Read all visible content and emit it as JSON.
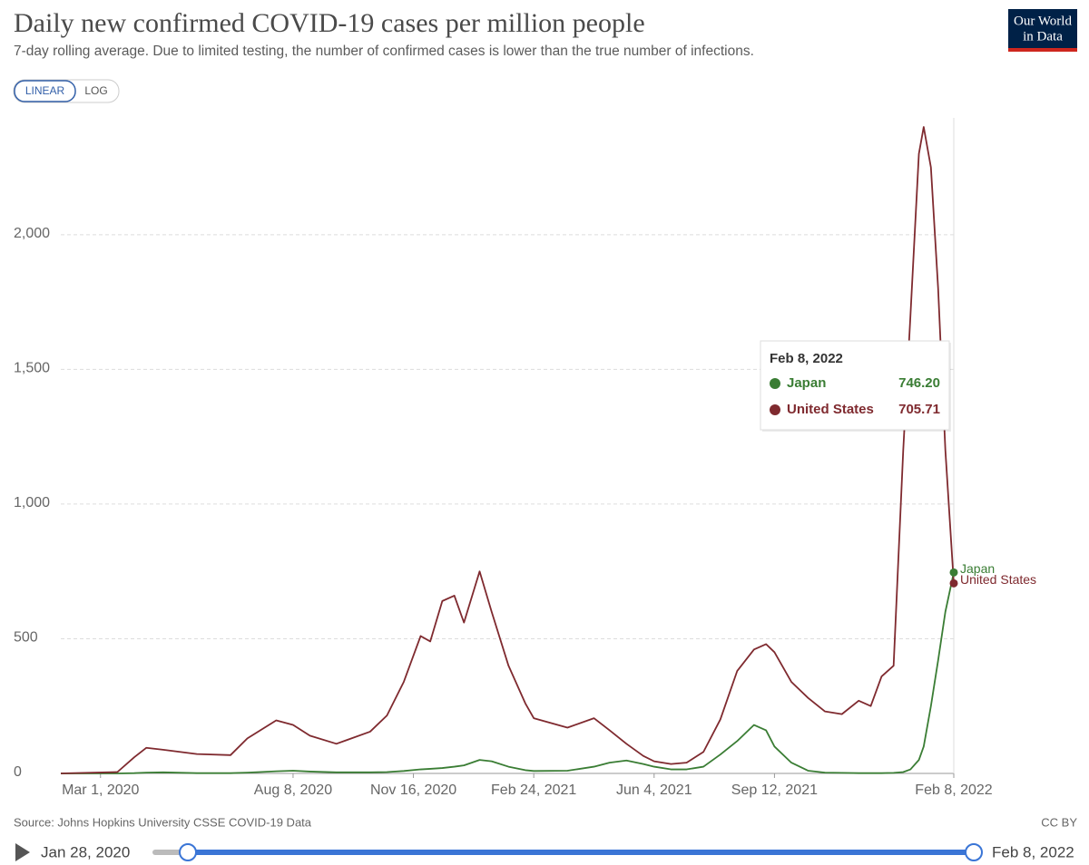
{
  "chart_data": {
    "type": "line",
    "title": "Daily new confirmed COVID-19 cases per million people",
    "subtitle": "7-day rolling average. Due to limited testing, the number of confirmed cases is lower than the true number of infections.",
    "scale_buttons": [
      "LINEAR",
      "LOG"
    ],
    "active_scale": "LINEAR",
    "logo": [
      "Our World",
      "in Data"
    ],
    "source": "Source: Johns Hopkins University CSSE COVID-19 Data",
    "license": "CC BY",
    "timeline": {
      "start": "Jan 28, 2020",
      "end": "Feb 8, 2022"
    },
    "x": [
      "2020-01-28",
      "2020-03-15",
      "2020-03-29",
      "2020-04-08",
      "2020-04-22",
      "2020-05-20",
      "2020-06-17",
      "2020-07-01",
      "2020-07-25",
      "2020-08-08",
      "2020-08-22",
      "2020-09-13",
      "2020-10-11",
      "2020-10-25",
      "2020-11-08",
      "2020-11-22",
      "2020-11-30",
      "2020-12-10",
      "2020-12-20",
      "2020-12-28",
      "2021-01-10",
      "2021-01-20",
      "2021-02-03",
      "2021-02-17",
      "2021-02-24",
      "2021-03-24",
      "2021-04-15",
      "2021-04-28",
      "2021-05-12",
      "2021-05-26",
      "2021-06-04",
      "2021-06-18",
      "2021-07-01",
      "2021-07-15",
      "2021-07-29",
      "2021-08-12",
      "2021-08-26",
      "2021-09-05",
      "2021-09-12",
      "2021-09-26",
      "2021-10-10",
      "2021-10-24",
      "2021-11-07",
      "2021-11-21",
      "2021-12-01",
      "2021-12-10",
      "2021-12-20",
      "2021-12-28",
      "2022-01-03",
      "2022-01-10",
      "2022-01-14",
      "2022-01-20",
      "2022-01-26",
      "2022-02-01",
      "2022-02-08"
    ],
    "series": [
      {
        "name": "Japan",
        "color": "#3a7d34",
        "values": [
          0,
          0,
          1,
          3,
          4,
          1,
          1,
          3,
          8,
          10,
          7,
          4,
          4,
          5,
          9,
          15,
          17,
          20,
          25,
          30,
          50,
          45,
          25,
          12,
          9,
          10,
          25,
          40,
          48,
          35,
          25,
          15,
          15,
          25,
          70,
          120,
          180,
          160,
          100,
          40,
          10,
          3,
          2,
          1,
          1,
          1,
          2,
          5,
          15,
          50,
          100,
          250,
          420,
          600,
          746.2
        ]
      },
      {
        "name": "United States",
        "color": "#7f2a2f",
        "values": [
          0,
          5,
          60,
          95,
          88,
          72,
          68,
          130,
          197,
          180,
          140,
          110,
          155,
          215,
          340,
          510,
          490,
          640,
          660,
          560,
          750,
          600,
          400,
          260,
          205,
          170,
          205,
          160,
          110,
          65,
          45,
          35,
          40,
          80,
          200,
          380,
          460,
          480,
          450,
          340,
          280,
          230,
          220,
          270,
          250,
          360,
          400,
          1200,
          1700,
          2300,
          2400,
          2250,
          1800,
          1200,
          705.71
        ]
      }
    ],
    "xlim": [
      "2020-01-28",
      "2022-02-08"
    ],
    "xticks": [
      {
        "value": "2020-03-01",
        "label": "Mar 1, 2020"
      },
      {
        "value": "2020-08-08",
        "label": "Aug 8, 2020"
      },
      {
        "value": "2020-11-16",
        "label": "Nov 16, 2020"
      },
      {
        "value": "2021-02-24",
        "label": "Feb 24, 2021"
      },
      {
        "value": "2021-06-04",
        "label": "Jun 4, 2021"
      },
      {
        "value": "2021-09-12",
        "label": "Sep 12, 2021"
      },
      {
        "value": "2022-02-08",
        "label": "Feb 8, 2022"
      }
    ],
    "ylim": [
      0,
      2400
    ],
    "yticks": [
      0,
      500,
      {
        "value": 1000,
        "label": "1,000"
      },
      {
        "value": 1500,
        "label": "1,500"
      },
      {
        "value": 2000,
        "label": "2,000"
      }
    ],
    "grid": true,
    "tooltip": {
      "title": "Feb 8, 2022",
      "values": [
        746.2,
        705.71
      ],
      "value_labels": [
        "746.20",
        "705.71"
      ]
    }
  }
}
